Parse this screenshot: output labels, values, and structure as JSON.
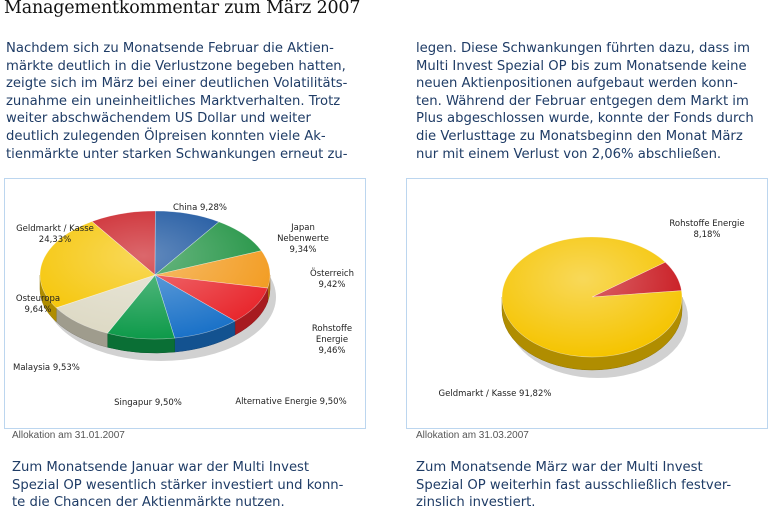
{
  "page": {
    "title": "Managementkommentar zum März 2007",
    "intro_left": [
      "Nachdem sich zu Monatsende Februar die Aktien-",
      "märkte deutlich in die Verlustzone begeben hatten,",
      "zeigte sich im März bei einer deutlichen Volatilitäts-",
      "zunahme ein uneinheitliches Marktverhalten. Trotz",
      "weiter abschwächendem US Dollar und weiter",
      "deutlich zulegenden Ölpreisen konnten viele Ak-",
      "tienmärkte unter starken Schwankungen erneut zu-"
    ],
    "intro_right": [
      "legen. Diese Schwankungen führten dazu, dass im",
      "Multi Invest Spezial OP bis zum Monatsende keine",
      "neuen Aktienpositionen aufgebaut werden konn-",
      "ten. Während der Februar entgegen dem Markt im",
      "Plus abgeschlossen wurde, konnte der Fonds durch",
      "die Verlusttage zu Monatsbeginn den Monat März",
      "nur mit einem Verlust von 2,06% abschließen."
    ],
    "outro_left": [
      "Zum Monatsende Januar war der Multi Invest",
      "Spezial OP wesentlich stärker investiert und konn-",
      "te die Chancen der Aktienmärkte nutzen."
    ],
    "outro_right": [
      "Zum Monatsende März war der Multi Invest",
      "Spezial OP weiterhin fast ausschließlich festver-",
      "zinslich investiert."
    ]
  },
  "chart_data": [
    {
      "type": "pie",
      "title": "Allokation am 31.01.2007",
      "slices": [
        {
          "name": "China",
          "value": 9.28,
          "text": "9,28%",
          "color": "#c8161d"
        },
        {
          "name": "Japan Nebenwerte",
          "value": 9.34,
          "text": "9,34%",
          "color": "#0f4c9a"
        },
        {
          "name": "Österreich",
          "value": 9.42,
          "text": "9,42%",
          "color": "#1d9140"
        },
        {
          "name": "Rohstoffe Energie",
          "value": 9.46,
          "text": "9,46%",
          "color": "#f29a1d"
        },
        {
          "name": "Alternative Energie",
          "value": 9.5,
          "text": "9,50%",
          "color": "#e8262c"
        },
        {
          "name": "Singapur",
          "value": 9.5,
          "text": "9,50%",
          "color": "#1b72c8"
        },
        {
          "name": "Malaysia",
          "value": 9.53,
          "text": "9,53%",
          "color": "#0e9a4a"
        },
        {
          "name": "Osteuropa",
          "value": 9.64,
          "text": "9,64%",
          "color": "#ddd9c4"
        },
        {
          "name": "Geldmarkt / Kasse",
          "value": 24.33,
          "text": "24,33%",
          "color": "#f5c400"
        }
      ]
    },
    {
      "type": "pie",
      "title": "Allokation am 31.03.2007",
      "slices": [
        {
          "name": "Rohstoffe Energie",
          "value": 8.18,
          "text": "8,18%",
          "color": "#c8161d"
        },
        {
          "name": "Geldmarkt / Kasse",
          "value": 91.82,
          "text": "91,82%",
          "color": "#f5c400"
        }
      ]
    }
  ]
}
